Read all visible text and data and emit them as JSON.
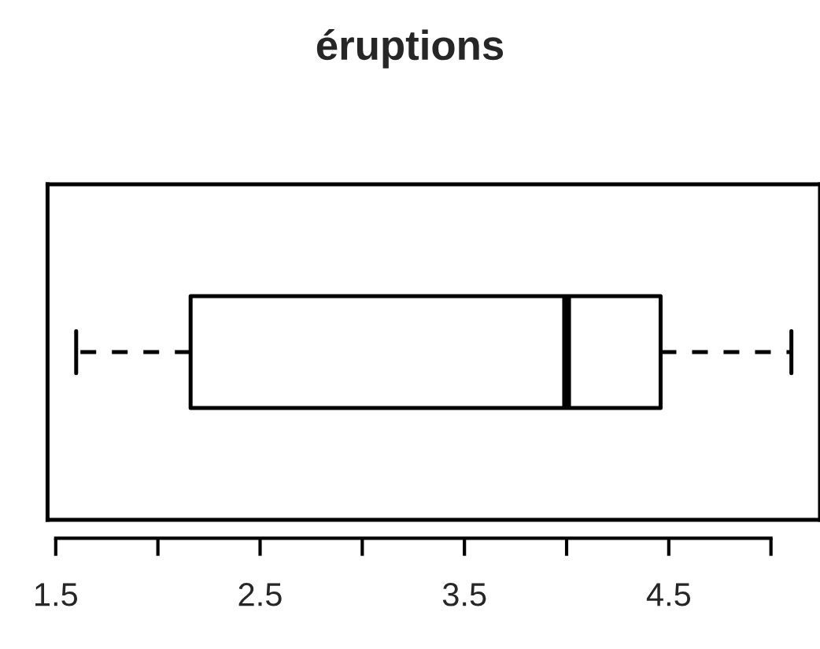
{
  "chart_data": {
    "type": "box",
    "title": "éruptions",
    "orientation": "horizontal",
    "categories": [
      null
    ],
    "boxes": [
      {
        "low": 1.6,
        "q1": 2.16,
        "median": 4.0,
        "q3": 4.46,
        "high": 5.1
      }
    ],
    "xlim": [
      1.46,
      5.24
    ],
    "xticks": [
      1.5,
      {
        "value": 2,
        "label": null
      },
      2.5,
      {
        "value": 3,
        "label": null
      },
      3.5,
      {
        "value": 4,
        "label": null
      },
      4.5,
      {
        "value": 5,
        "label": null
      }
    ],
    "tick_labels": "x"
  }
}
